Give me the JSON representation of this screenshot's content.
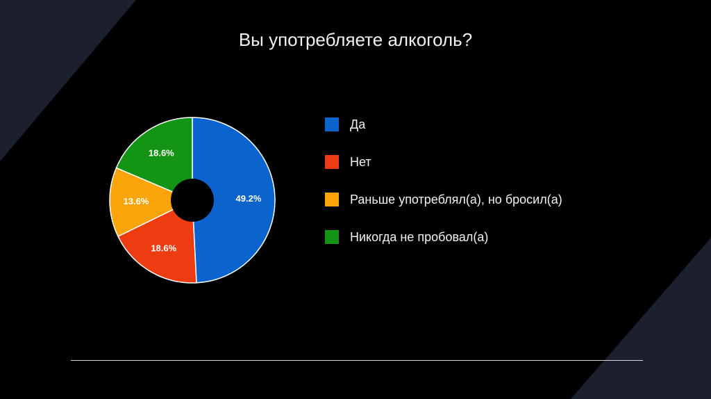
{
  "slide": {
    "title": "Вы употребляете алкоголь?"
  },
  "colors": {
    "background": "#000000",
    "corner_shape": "#1c1f2e"
  },
  "chart_data": {
    "type": "pie",
    "title": "",
    "donut": true,
    "legend_position": "right",
    "slices": [
      {
        "label": "Да",
        "value": 49.2,
        "display": "49.2%",
        "color": "#0b63cd"
      },
      {
        "label": "Нет",
        "value": 18.6,
        "display": "18.6%",
        "color": "#ee3c12"
      },
      {
        "label": "Раньше употреблял(а), но бросил(а)",
        "value": 13.6,
        "display": "13.6%",
        "color": "#fba409"
      },
      {
        "label": "Никогда не пробовал(а)",
        "value": 18.6,
        "display": "18.6%",
        "color": "#149415"
      }
    ]
  }
}
